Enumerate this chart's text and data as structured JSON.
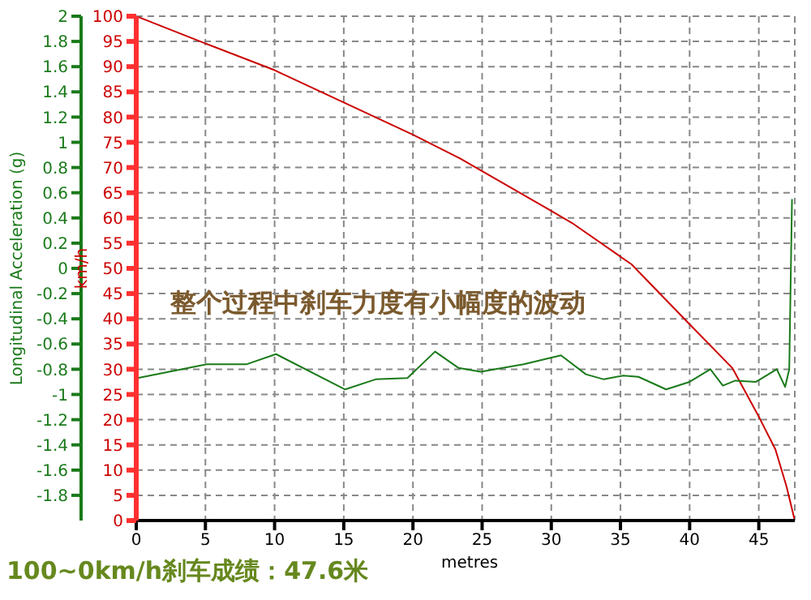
{
  "chart_data": {
    "type": "line",
    "xlabel": "metres",
    "ylabel": "Longitudinal Acceleration (g)",
    "y2label": "km/h",
    "xlim": [
      0,
      47.6
    ],
    "xticks": [
      0,
      5,
      10,
      15,
      20,
      25,
      30,
      35,
      40,
      45
    ],
    "ylim": [
      -2,
      2
    ],
    "yticks": [
      -1.8,
      -1.6,
      -1.4,
      -1.2,
      -1,
      -0.8,
      -0.6,
      -0.4,
      -0.2,
      0,
      0.2,
      0.4,
      0.6,
      0.8,
      1,
      1.2,
      1.4,
      1.6,
      1.8,
      2
    ],
    "y2lim": [
      0,
      100
    ],
    "y2ticks": [
      0,
      5,
      10,
      15,
      20,
      25,
      30,
      35,
      40,
      45,
      50,
      55,
      60,
      65,
      70,
      75,
      80,
      85,
      90,
      95,
      100
    ],
    "grid": true,
    "series": [
      {
        "type": "line",
        "axis": "y2",
        "color": "#cc0000",
        "x": [
          0,
          5,
          10,
          15,
          20,
          23.4,
          30,
          31.5,
          35.8,
          40,
          43.1,
          45,
          46.2,
          47,
          47.6
        ],
        "values": [
          100,
          94.6,
          89.3,
          82.9,
          76.5,
          71.8,
          61.4,
          59,
          50.8,
          38.9,
          30.2,
          20.6,
          14.1,
          6.8,
          0
        ]
      },
      {
        "type": "line",
        "axis": "y",
        "color": "#1a7a1a",
        "x": [
          0.1,
          5.1,
          8,
          10.1,
          15.1,
          17.3,
          19.6,
          21.6,
          23.3,
          24.9,
          28,
          30.7,
          32.5,
          33.8,
          35.2,
          36.3,
          38.3,
          40,
          41.5,
          42.4,
          43.3,
          44.8,
          46.3,
          46.9,
          47.2,
          47.4
        ],
        "values": [
          -0.87,
          -0.76,
          -0.76,
          -0.68,
          -0.96,
          -0.88,
          -0.87,
          -0.66,
          -0.79,
          -0.82,
          -0.76,
          -0.69,
          -0.84,
          -0.88,
          -0.85,
          -0.86,
          -0.96,
          -0.9,
          -0.8,
          -0.93,
          -0.89,
          -0.9,
          -0.8,
          -0.94,
          -0.8,
          0.55
        ]
      }
    ],
    "annotations": [
      "整个过程中刹车力度有小幅度的波动",
      "100~0km/h刹车成绩：47.6米"
    ]
  }
}
